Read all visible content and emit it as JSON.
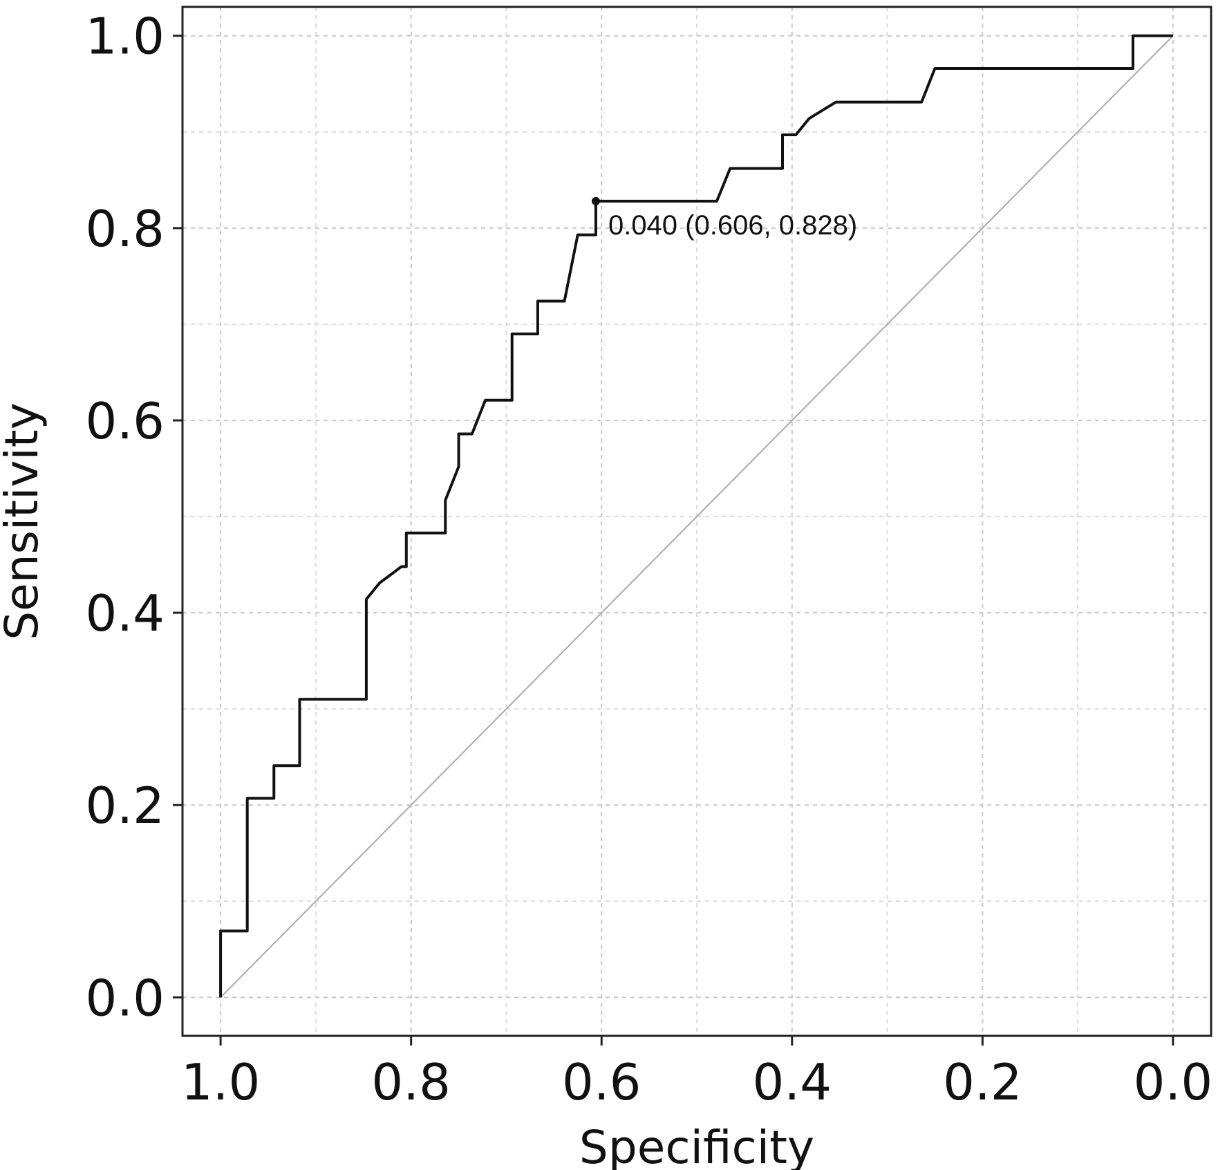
{
  "chart_data": {
    "type": "line",
    "xlabel": "Specificity",
    "ylabel": "Sensitivity",
    "x_reversed": true,
    "xlim": [
      1.04,
      -0.04
    ],
    "ylim": [
      -0.04,
      1.03
    ],
    "xticks": [
      "1.0",
      "0.8",
      "0.6",
      "0.4",
      "0.2",
      "0.0"
    ],
    "yticks": [
      "0.0",
      "0.2",
      "0.4",
      "0.6",
      "0.8",
      "1.0"
    ],
    "grid": true,
    "reference_line": {
      "from": [
        1.0,
        0.0
      ],
      "to": [
        0.0,
        1.0
      ],
      "color": "#aaaaaa"
    },
    "series": [
      {
        "color": "#111111",
        "x": [
          1.0,
          1.0,
          0.972,
          0.972,
          0.944,
          0.944,
          0.917,
          0.917,
          0.847,
          0.847,
          0.833,
          0.81,
          0.805,
          0.805,
          0.764,
          0.764,
          0.75,
          0.75,
          0.736,
          0.722,
          0.694,
          0.694,
          0.667,
          0.667,
          0.639,
          0.625,
          0.625,
          0.606,
          0.606,
          0.479,
          0.465,
          0.41,
          0.41,
          0.396,
          0.382,
          0.354,
          0.264,
          0.25,
          0.042,
          0.042,
          0.0
        ],
        "y": [
          0.0,
          0.069,
          0.069,
          0.207,
          0.207,
          0.241,
          0.241,
          0.31,
          0.31,
          0.414,
          0.431,
          0.448,
          0.448,
          0.483,
          0.483,
          0.517,
          0.552,
          0.586,
          0.586,
          0.621,
          0.621,
          0.69,
          0.69,
          0.724,
          0.724,
          0.793,
          0.793,
          0.793,
          0.828,
          0.828,
          0.862,
          0.862,
          0.897,
          0.897,
          0.914,
          0.931,
          0.931,
          0.966,
          0.966,
          1.0,
          1.0
        ]
      }
    ],
    "highlight_point": {
      "x": 0.606,
      "y": 0.828,
      "label": "0.040 (0.606, 0.828)"
    }
  }
}
